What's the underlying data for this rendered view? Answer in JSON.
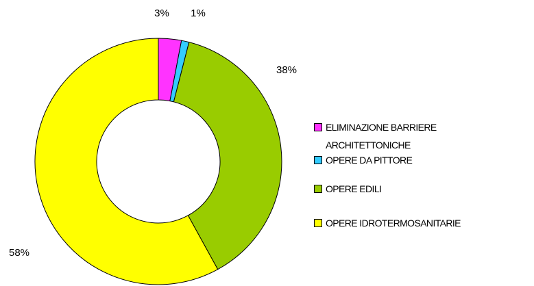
{
  "chart_data": {
    "type": "donut",
    "categories": [
      "ELIMINAZIONE BARRIERE ARCHITETTONICHE",
      "OPERE DA PITTORE",
      "OPERE EDILI",
      "OPERE IDROTERMOSANITARIE"
    ],
    "values": [
      3,
      1,
      38,
      58
    ],
    "value_labels": [
      "3%",
      "1%",
      "38%",
      "58%"
    ],
    "colors": [
      "#ff33ff",
      "#33ccff",
      "#99cc00",
      "#ffff00"
    ],
    "legend": "right"
  }
}
